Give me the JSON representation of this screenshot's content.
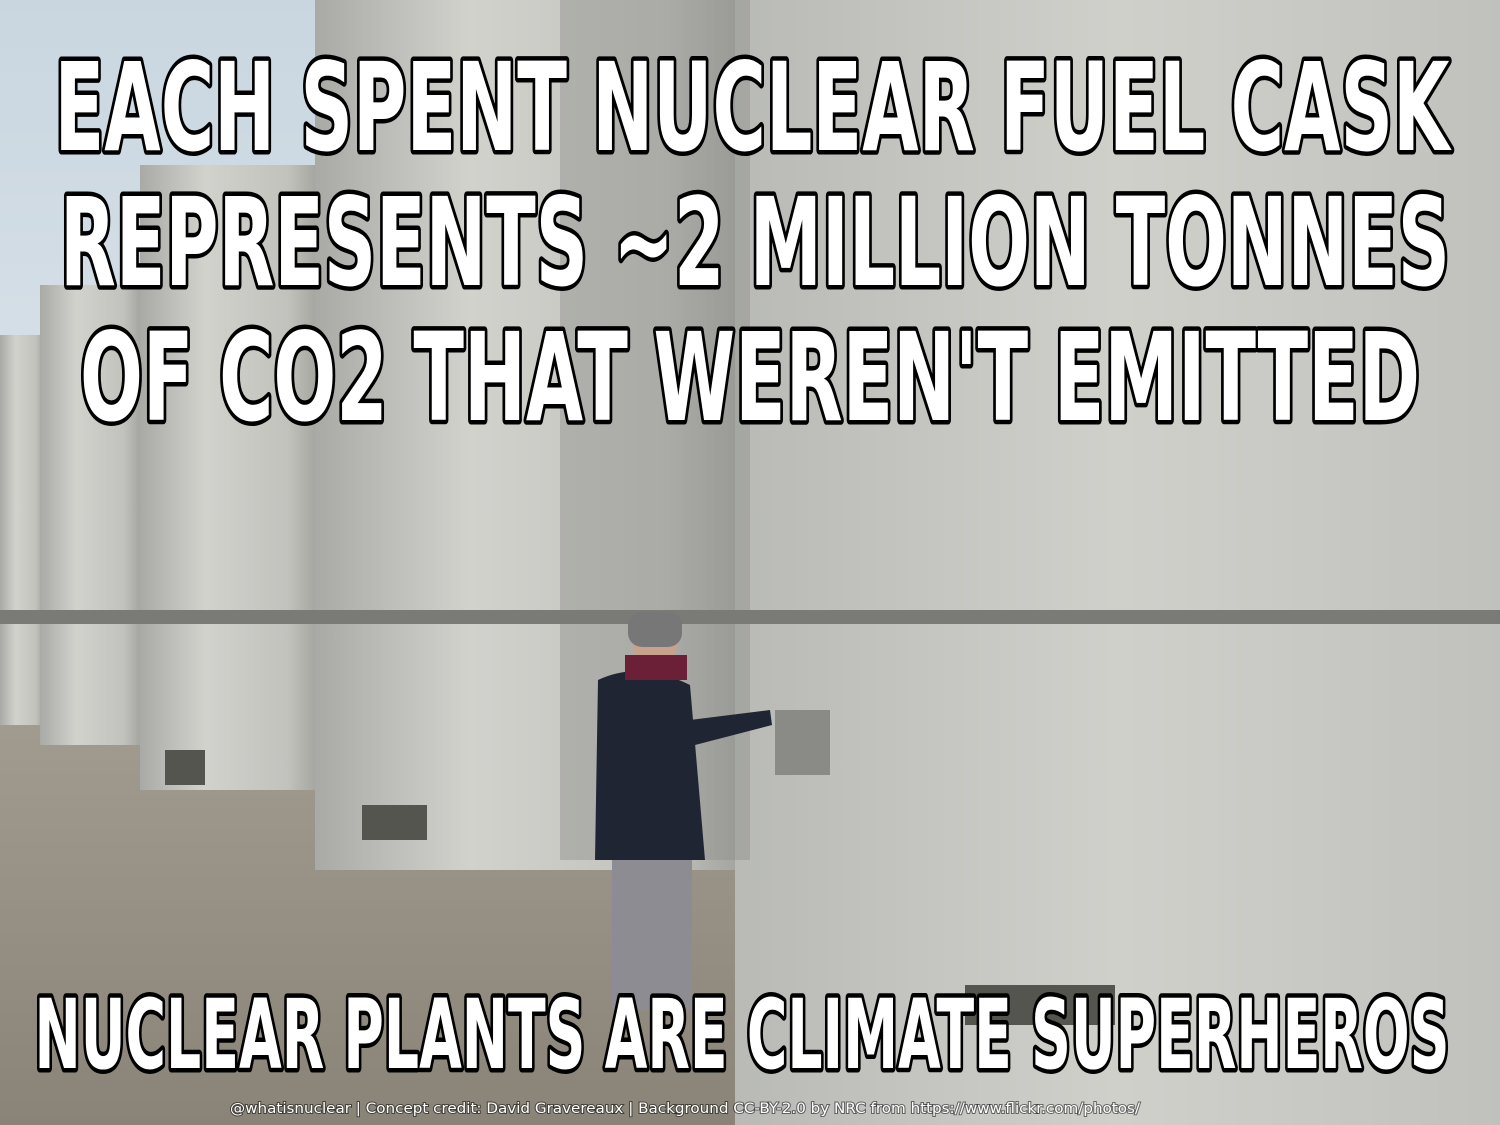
{
  "top_text": [
    "EACH SPENT NUCLEAR FUEL CASK",
    "REPRESENTS ~2 MILLION TONNES",
    "OF CO2 THAT WEREN'T  EMITTED"
  ],
  "bottom_text": "NUCLEAR PLANTS ARE  CLIMATE SUPERHEROS",
  "credit": "@whatisnuclear |  Concept credit: David Gravereaux | Background CC-BY-2.0 by NRC from https://www.flickr.com/photos/"
}
